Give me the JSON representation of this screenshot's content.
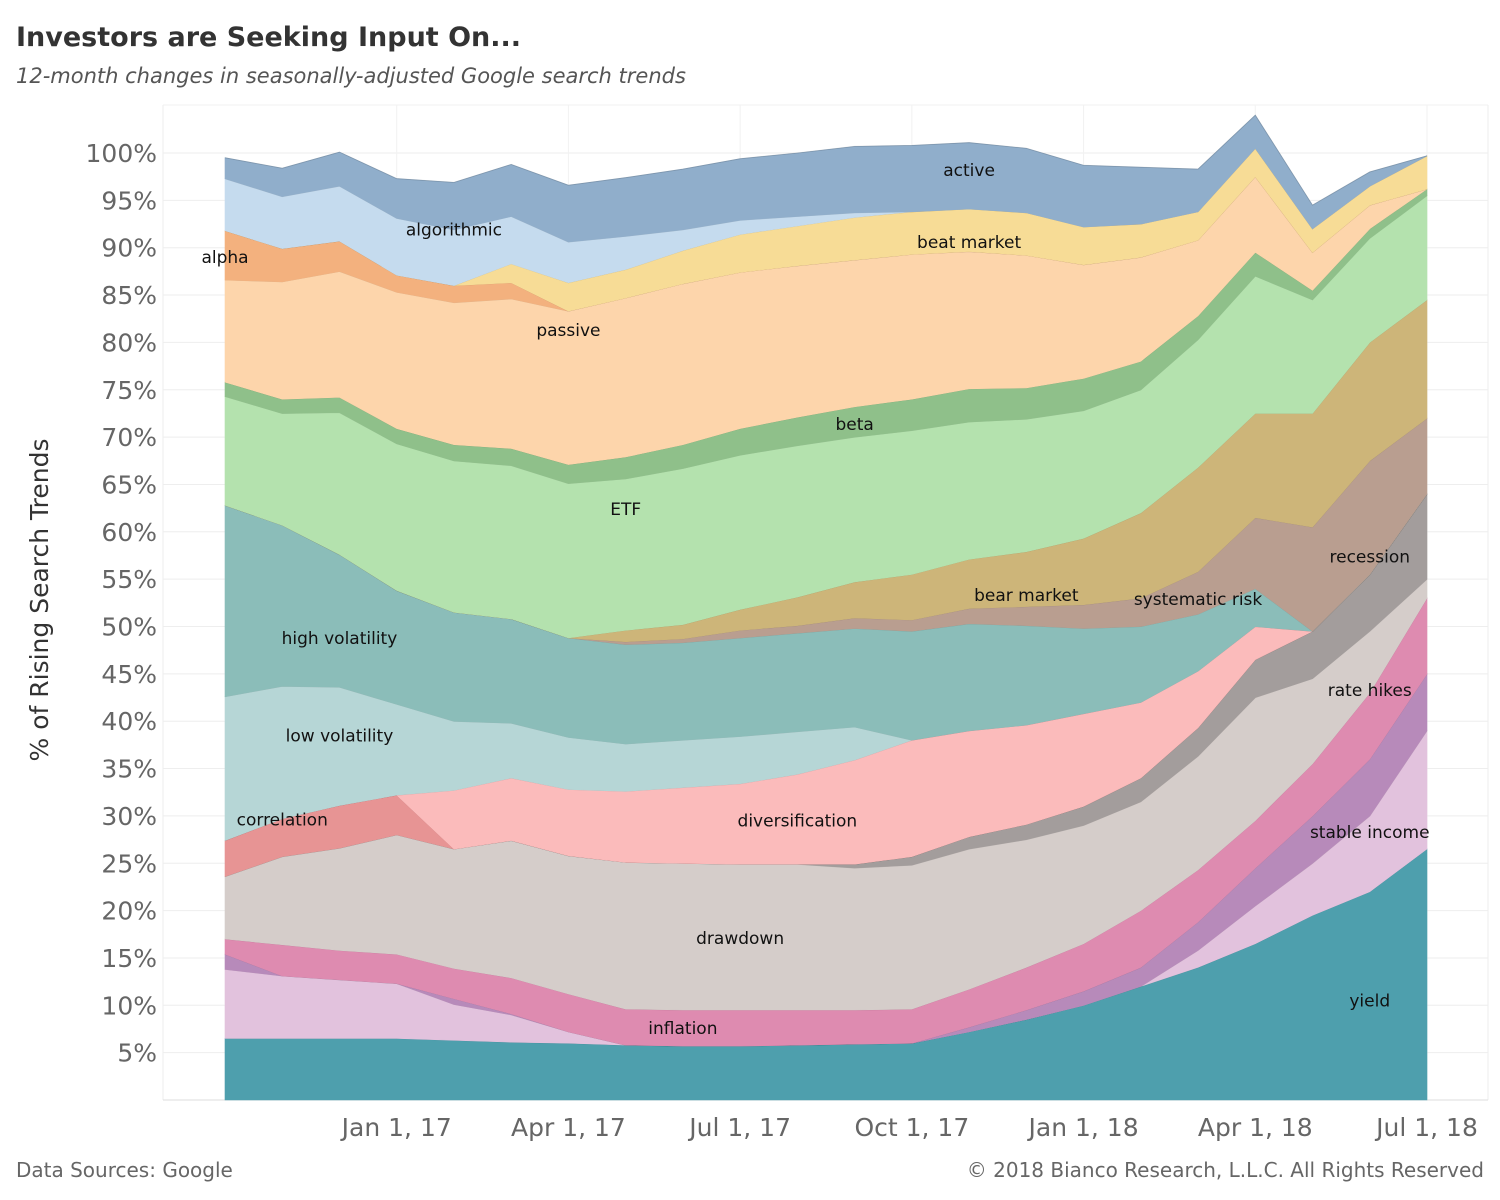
{
  "title": "Investors are Seeking Input On...",
  "subtitle": "12-month changes in seasonally-adjusted Google search trends",
  "footer_source": "Data Sources: Google",
  "footer_copyright": "© 2018 Bianco Research, L.L.C. All Rights Reserved",
  "chart_data": {
    "type": "area",
    "stacked": true,
    "normalized_percent": true,
    "ylabel": "% of Rising Search Trends",
    "xlabel": "",
    "ylim": [
      0,
      100
    ],
    "y_ticks": [
      "5%",
      "10%",
      "15%",
      "20%",
      "25%",
      "30%",
      "35%",
      "40%",
      "45%",
      "50%",
      "55%",
      "60%",
      "65%",
      "70%",
      "75%",
      "80%",
      "85%",
      "90%",
      "95%",
      "100%"
    ],
    "x_ticks": [
      "Jan 1, 17",
      "Apr 1, 17",
      "Jul 1, 17",
      "Oct 1, 17",
      "Jan 1, 18",
      "Apr 1, 18",
      "Jul 1, 18"
    ],
    "x": [
      "Oct 1, 16",
      "Nov 1, 16",
      "Dec 1, 16",
      "Jan 1, 17",
      "Feb 1, 17",
      "Mar 1, 17",
      "Apr 1, 17",
      "May 1, 17",
      "Jun 1, 17",
      "Jul 1, 17",
      "Aug 1, 17",
      "Sep 1, 17",
      "Oct 1, 17",
      "Nov 1, 17",
      "Dec 1, 17",
      "Jan 1, 18",
      "Feb 1, 18",
      "Mar 1, 18",
      "Apr 1, 18",
      "May 1, 18",
      "Jun 1, 18",
      "Jul 1, 18"
    ],
    "grid": true,
    "series": [
      {
        "name": "yield",
        "color": "#4e9fad",
        "values": [
          6.5,
          6.5,
          6.5,
          6.5,
          6.3,
          6.1,
          6.0,
          5.8,
          5.7,
          5.7,
          5.8,
          5.9,
          6.0,
          7.2,
          8.5,
          10.0,
          12.0,
          14.0,
          16.5,
          19.5,
          22.0,
          26.5
        ]
      },
      {
        "name": "stable income",
        "color": "#e2c2dd",
        "values": [
          7.3,
          6.6,
          6.2,
          5.8,
          3.8,
          2.9,
          1.2,
          0,
          0,
          0,
          0,
          0,
          0,
          0,
          0,
          0,
          0,
          1.8,
          4.0,
          5.5,
          8.0,
          12.5
        ]
      },
      {
        "name": "rate hikes",
        "color": "#b78aba",
        "values": [
          1.6,
          0,
          0,
          0,
          0.6,
          0.1,
          0,
          0,
          0,
          0,
          0,
          0,
          0,
          0.5,
          1.0,
          1.5,
          2.0,
          3.0,
          4.0,
          5.0,
          6.0,
          6.0
        ]
      },
      {
        "name": "inflation",
        "color": "#de8bb0",
        "values": [
          1.6,
          3.3,
          3.1,
          3.1,
          3.2,
          3.8,
          4.0,
          3.8,
          3.8,
          3.8,
          3.7,
          3.6,
          3.6,
          4.0,
          4.5,
          5.0,
          6.0,
          5.5,
          5.0,
          5.5,
          7.0,
          8.0
        ]
      },
      {
        "name": "drawdown",
        "color": "#d5cdca",
        "values": [
          6.6,
          9.3,
          10.8,
          12.6,
          12.6,
          14.5,
          14.6,
          15.5,
          15.5,
          15.4,
          15.4,
          15.0,
          15.2,
          14.8,
          13.5,
          12.5,
          11.5,
          12.0,
          13.0,
          9.0,
          6.5,
          2.0
        ]
      },
      {
        "name": "recession",
        "color": "#a39d9c",
        "values": [
          0,
          0,
          0,
          0,
          0,
          0,
          0,
          0,
          0,
          0,
          0,
          0.4,
          0.9,
          1.3,
          1.6,
          2.0,
          2.5,
          3.0,
          4.0,
          5.0,
          6.0,
          9.0
        ]
      },
      {
        "name": "correlation",
        "color": "#e79494",
        "values": [
          3.8,
          4.0,
          4.5,
          4.2,
          0,
          0,
          0,
          0,
          0,
          0,
          0,
          0,
          0,
          0,
          0,
          0,
          0,
          0,
          0,
          0,
          0,
          0
        ]
      },
      {
        "name": "diversification",
        "color": "#fbbbbb",
        "values": [
          0,
          0,
          0,
          0,
          6.2,
          6.6,
          7.0,
          7.5,
          8.0,
          8.5,
          9.5,
          11.0,
          12.3,
          11.2,
          10.5,
          9.8,
          8.0,
          6.0,
          3.5,
          0,
          0,
          0
        ]
      },
      {
        "name": "low volatility",
        "color": "#b6d6d6",
        "values": [
          15.2,
          14.0,
          12.5,
          9.6,
          7.3,
          5.8,
          5.5,
          5.0,
          5.0,
          5.0,
          4.5,
          3.5,
          0,
          0,
          0,
          0,
          0,
          0,
          0,
          0,
          0,
          0
        ]
      },
      {
        "name": "high volatility",
        "color": "#8bbdb9",
        "values": [
          20.2,
          17.0,
          14.0,
          12.0,
          11.5,
          11.0,
          10.5,
          10.5,
          10.3,
          10.4,
          10.4,
          10.4,
          11.5,
          11.3,
          10.5,
          9.0,
          8.0,
          6.0,
          4.0,
          0,
          0,
          0
        ]
      },
      {
        "name": "systematic risk",
        "color": "#b99e90",
        "values": [
          0,
          0,
          0,
          0,
          0,
          0,
          0,
          0.3,
          0.4,
          0.8,
          0.8,
          1.1,
          1.2,
          1.6,
          2.0,
          2.5,
          3.0,
          4.5,
          7.5,
          11.0,
          12.0,
          8.0
        ]
      },
      {
        "name": "bear market",
        "color": "#cdb579",
        "values": [
          0,
          0,
          0,
          0,
          0,
          0,
          0,
          1.2,
          1.5,
          2.2,
          3.0,
          3.8,
          4.8,
          5.2,
          5.8,
          7.0,
          9.0,
          11.0,
          11.0,
          12.0,
          12.5,
          12.5
        ]
      },
      {
        "name": "ETF",
        "color": "#b4e2ae",
        "values": [
          11.5,
          11.8,
          15.0,
          15.5,
          16.0,
          16.2,
          16.3,
          16.0,
          16.5,
          16.3,
          16.0,
          15.3,
          15.2,
          14.5,
          14.0,
          13.5,
          13.0,
          13.5,
          14.5,
          12.0,
          11.0,
          11.0
        ]
      },
      {
        "name": "beta",
        "color": "#8fc08a",
        "values": [
          1.5,
          1.5,
          1.6,
          1.6,
          1.7,
          1.8,
          2.0,
          2.3,
          2.5,
          2.8,
          3.0,
          3.2,
          3.3,
          3.5,
          3.3,
          3.4,
          3.0,
          2.5,
          2.5,
          1.0,
          1.0,
          0.7
        ]
      },
      {
        "name": "passive",
        "color": "#fdd5ab",
        "values": [
          10.8,
          12.4,
          13.3,
          14.4,
          15.0,
          15.8,
          16.2,
          16.8,
          17.0,
          16.5,
          16.0,
          15.5,
          15.3,
          14.5,
          14.0,
          12.0,
          11.0,
          8.0,
          8.0,
          4.0,
          2.5,
          0
        ]
      },
      {
        "name": "alpha",
        "color": "#f3b17e",
        "values": [
          5.2,
          3.5,
          3.2,
          1.8,
          1.8,
          1.7,
          0,
          0,
          0,
          0,
          0,
          0,
          0,
          0,
          0,
          0,
          0,
          0,
          0,
          0,
          0,
          0
        ]
      },
      {
        "name": "beat market",
        "color": "#f7dc96",
        "values": [
          0,
          0,
          0,
          0,
          0,
          2.0,
          3.0,
          3.0,
          3.5,
          4.0,
          4.2,
          4.5,
          4.5,
          4.5,
          4.5,
          4.0,
          3.5,
          3.0,
          3.0,
          2.5,
          2.0,
          3.5
        ]
      },
      {
        "name": "algorithmic",
        "color": "#c5dbee",
        "values": [
          5.5,
          5.5,
          5.8,
          6.0,
          5.9,
          5.0,
          4.3,
          3.5,
          2.2,
          1.5,
          1.0,
          0.5,
          0,
          0,
          0,
          0,
          0,
          0,
          0,
          0,
          0,
          0
        ]
      },
      {
        "name": "active",
        "color": "#90aecb",
        "values": [
          2.2,
          3.0,
          3.6,
          4.2,
          5.0,
          5.5,
          6.0,
          6.2,
          6.4,
          6.5,
          6.7,
          7.0,
          7.0,
          7.0,
          6.8,
          6.5,
          6.0,
          4.5,
          3.5,
          2.5,
          1.5,
          0
        ]
      }
    ],
    "series_labels": [
      {
        "name": "yield",
        "at_x": "Jun 1, 18",
        "at_y": 10.5
      },
      {
        "name": "stable income",
        "at_x": "Jun 1, 18",
        "at_y": 28.3
      },
      {
        "name": "rate hikes",
        "at_x": "Jun 1, 18",
        "at_y": 43.3
      },
      {
        "name": "inflation",
        "at_x": "Jun 1, 17",
        "at_y": 7.6
      },
      {
        "name": "drawdown",
        "at_x": "Jul 1, 17",
        "at_y": 17.1
      },
      {
        "name": "recession",
        "at_x": "Jun 1, 18",
        "at_y": 57.4
      },
      {
        "name": "correlation",
        "at_x": "Nov 1, 16",
        "at_y": 29.6
      },
      {
        "name": "diversification",
        "at_x": "Aug 1, 17",
        "at_y": 29.5
      },
      {
        "name": "low volatility",
        "at_x": "Dec 1, 16",
        "at_y": 38.5
      },
      {
        "name": "high volatility",
        "at_x": "Dec 1, 16",
        "at_y": 48.8
      },
      {
        "name": "systematic risk",
        "at_x": "Mar 1, 18",
        "at_y": 52.9
      },
      {
        "name": "bear market",
        "at_x": "Dec 1, 17",
        "at_y": 53.3
      },
      {
        "name": "ETF",
        "at_x": "May 1, 17",
        "at_y": 62.4
      },
      {
        "name": "beta",
        "at_x": "Sep 1, 17",
        "at_y": 71.4
      },
      {
        "name": "passive",
        "at_x": "Apr 1, 17",
        "at_y": 81.3
      },
      {
        "name": "alpha",
        "at_x": "Oct 1, 16",
        "at_y": 89.0
      },
      {
        "name": "beat market",
        "at_x": "Nov 1, 17",
        "at_y": 90.6
      },
      {
        "name": "algorithmic",
        "at_x": "Feb 1, 17",
        "at_y": 91.9
      },
      {
        "name": "active",
        "at_x": "Nov 1, 17",
        "at_y": 98.2
      }
    ]
  }
}
